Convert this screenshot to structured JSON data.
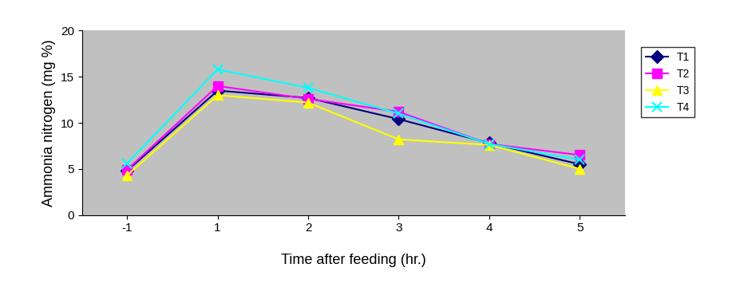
{
  "chart_data": {
    "type": "line",
    "x_label": "Time after feeding (hr.)",
    "y_label": "Ammonia nitrogen (mg %)",
    "categories": [
      "-1",
      "1",
      "2",
      "3",
      "4",
      "5"
    ],
    "series": [
      {
        "name": "T1",
        "color": "#000080",
        "marker": "diamond",
        "line_style": "solid",
        "values": [
          4.8,
          13.5,
          12.7,
          10.4,
          7.8,
          5.5
        ]
      },
      {
        "name": "T2",
        "color": "#FF00FF",
        "marker": "square",
        "line_style": "solid",
        "values": [
          4.9,
          14.0,
          12.6,
          11.2,
          7.7,
          6.5
        ]
      },
      {
        "name": "T3",
        "color": "#FFFF00",
        "marker": "triangle",
        "line_style": "solid",
        "values": [
          4.3,
          13.0,
          12.2,
          8.2,
          7.6,
          5.0
        ]
      },
      {
        "name": "T4",
        "color": "#00FFFF",
        "marker": "x",
        "line_style": "solid",
        "values": [
          5.6,
          15.8,
          13.8,
          11.0,
          7.7,
          6.0
        ]
      }
    ],
    "ylim": [
      0,
      20
    ],
    "yticks": [
      0,
      5,
      10,
      15,
      20
    ],
    "grid": false,
    "legend": "right"
  }
}
